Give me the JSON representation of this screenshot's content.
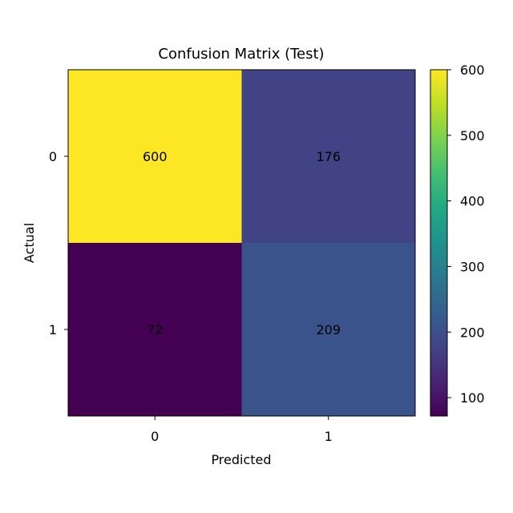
{
  "chart_data": {
    "type": "heatmap",
    "title": "Confusion Matrix (Test)",
    "xlabel": "Predicted",
    "ylabel": "Actual",
    "x_categories": [
      "0",
      "1"
    ],
    "y_categories": [
      "0",
      "1"
    ],
    "values": [
      [
        600,
        176
      ],
      [
        72,
        209
      ]
    ],
    "colormap": "viridis",
    "colorbar": {
      "min": 72,
      "max": 600,
      "ticks": [
        100,
        200,
        300,
        400,
        500,
        600
      ]
    }
  }
}
